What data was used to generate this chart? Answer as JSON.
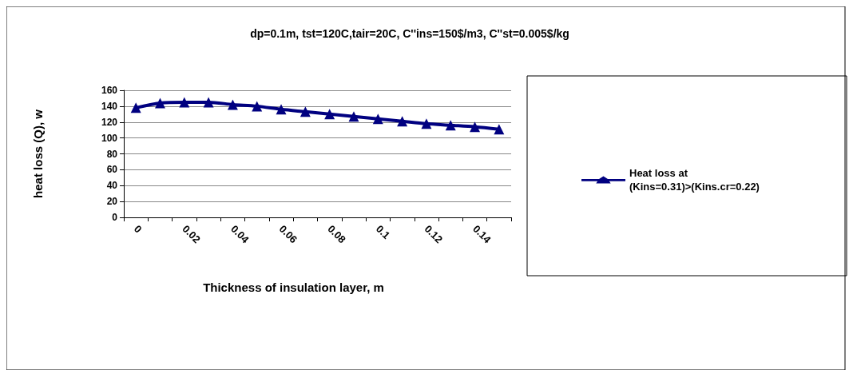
{
  "chart_data": {
    "type": "line",
    "title": "dp=0.1m, tst=120C,tair=20C, C''ins=150$/m3, C''st=0.005$/kg",
    "xlabel": "Thickness of insulation layer, m",
    "ylabel": "heat loss (Q), w",
    "categories": [
      "0",
      null,
      "0.02",
      null,
      "0.04",
      null,
      "0.06",
      null,
      "0.08",
      null,
      "0.1",
      null,
      "0.12",
      null,
      "0.14",
      null
    ],
    "series": [
      {
        "name": "Heat loss at\n(Kins=0.31)>(Kins.cr=0.22)",
        "color": "#000080",
        "values": [
          138,
          144,
          145,
          145,
          142,
          140,
          136,
          133,
          130,
          127,
          124,
          121,
          118,
          116,
          114,
          111
        ]
      }
    ],
    "ylim": [
      0,
      160
    ],
    "yticks": [
      0,
      20,
      40,
      60,
      80,
      100,
      120,
      140,
      160
    ],
    "grid": "y",
    "legend": "right",
    "marker": "triangle",
    "line_style": "solid"
  }
}
